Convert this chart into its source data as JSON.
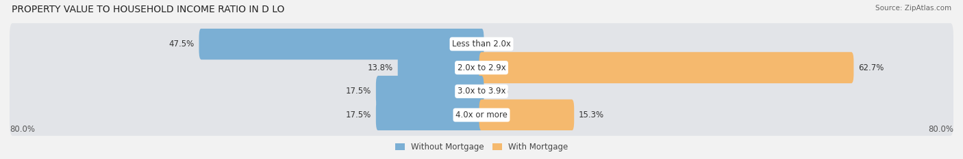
{
  "title": "PROPERTY VALUE TO HOUSEHOLD INCOME RATIO IN D LO",
  "source": "Source: ZipAtlas.com",
  "categories": [
    "Less than 2.0x",
    "2.0x to 2.9x",
    "3.0x to 3.9x",
    "4.0x or more"
  ],
  "without_mortgage": [
    47.5,
    13.8,
    17.5,
    17.5
  ],
  "with_mortgage": [
    0.0,
    62.7,
    0.0,
    15.3
  ],
  "color_without": "#7bafd4",
  "color_with": "#f5b96e",
  "xlim_left": -80.0,
  "xlim_right": 80.0,
  "x_axis_left_label": "80.0%",
  "x_axis_right_label": "80.0%",
  "background_color": "#f2f2f2",
  "row_bg_color": "#e2e4e8",
  "bar_height": 0.52,
  "title_fontsize": 10,
  "source_fontsize": 8,
  "label_fontsize": 8.5,
  "value_fontsize": 8.5,
  "legend_fontsize": 8.5,
  "legend_without": "Without Mortgage",
  "legend_with": "With Mortgage"
}
